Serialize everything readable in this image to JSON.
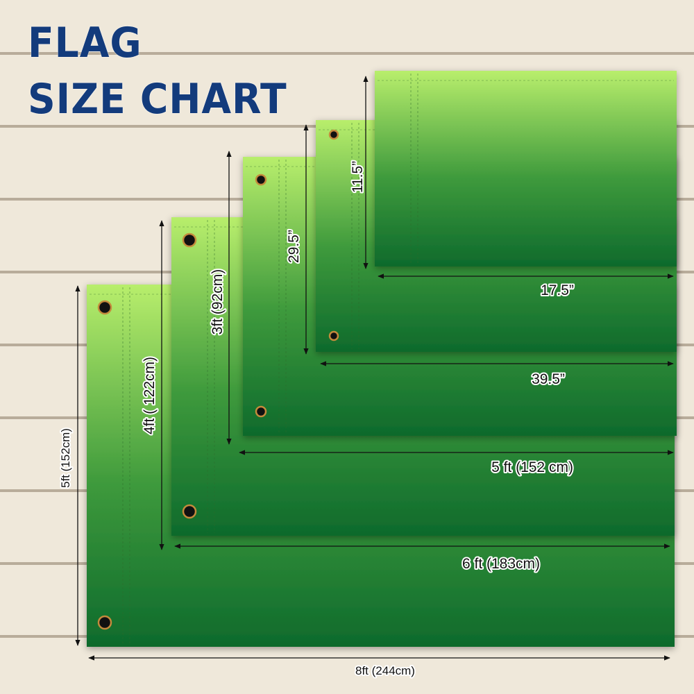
{
  "title": {
    "line1": "FLAG",
    "line2": "SIZE CHART"
  },
  "colors": {
    "title": "#133b7c",
    "flag_top": "#b5ec6a",
    "flag_bottom": "#0f6b2c",
    "wood": "#efe8da"
  },
  "flags": [
    {
      "width_label": "8ft (244cm)",
      "height_label": "5ft (152cm)"
    },
    {
      "width_label": "6 ft (183cm)",
      "height_label": "4ft ( 122cm)"
    },
    {
      "width_label": "5 ft (152 cm)",
      "height_label": "3ft (92cm)"
    },
    {
      "width_label": "39.5”",
      "height_label": "29.5”"
    },
    {
      "width_label": "17.5”",
      "height_label": "11.5”"
    }
  ]
}
